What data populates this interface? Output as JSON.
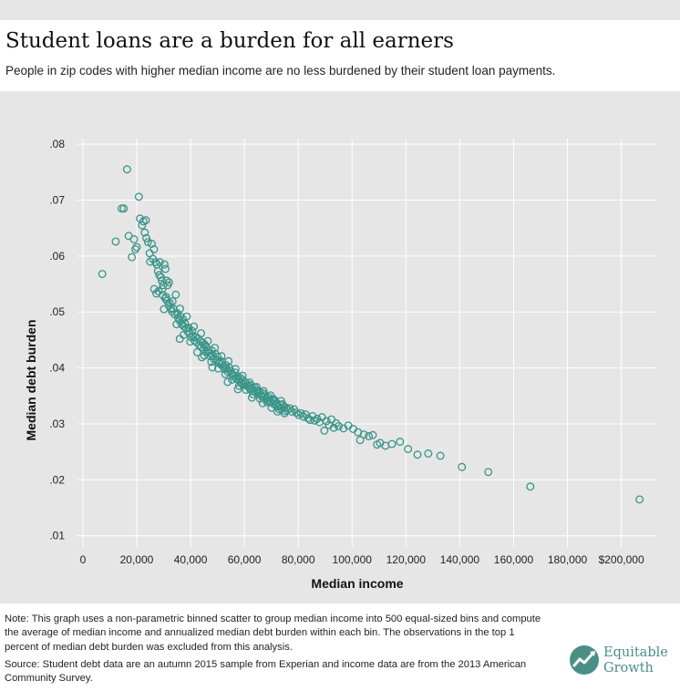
{
  "header": {
    "title": "Student loans are a burden for all earners",
    "subtitle": "People in zip codes with higher median income are no less burdened by their student loan payments."
  },
  "footer": {
    "note": "Note: This graph uses a non-parametric binned scatter to group median income into 500 equal-sized bins and compute the average of median income and annualized median debt burden within each bin. The observations in the top 1 percent of median debt burden was excluded from this analysis.",
    "source": "Source: Student debt data are an autumn 2015 sample from Experian and income data are from the 2013 American Community Survey.",
    "logo_line1": "Equitable",
    "logo_line2": "Growth"
  },
  "colors": {
    "marker": "#3a9488",
    "grid": "#ffffff",
    "background": "#e6e6e6",
    "logo": "#4a8f86"
  },
  "icons": {
    "logo": "equitable-growth-logo-icon"
  },
  "chart_data": {
    "type": "scatter",
    "xlabel": "Median income",
    "ylabel": "Median debt burden",
    "xlim": [
      -2000,
      213000
    ],
    "ylim": [
      0.008,
      0.081
    ],
    "x_ticks": [
      0,
      20000,
      40000,
      60000,
      80000,
      100000,
      120000,
      140000,
      160000,
      180000,
      200000
    ],
    "x_tick_labels": [
      "0",
      "20,000",
      "40,000",
      "60,000",
      "80,000",
      "100,000",
      "120,000",
      "140,000",
      "160,000",
      "180,000",
      "$200,000"
    ],
    "y_ticks": [
      0.01,
      0.02,
      0.03,
      0.04,
      0.05,
      0.06,
      0.07,
      0.08
    ],
    "y_tick_labels": [
      ".01",
      ".02",
      ".03",
      ".04",
      ".05",
      ".06",
      ".07",
      ".08"
    ],
    "grid": true,
    "marker": "hollow-circle",
    "points": [
      [
        7200,
        0.0568
      ],
      [
        12200,
        0.0626
      ],
      [
        14400,
        0.0685
      ],
      [
        15200,
        0.0685
      ],
      [
        16400,
        0.0755
      ],
      [
        17000,
        0.0636
      ],
      [
        18200,
        0.0598
      ],
      [
        19000,
        0.063
      ],
      [
        19500,
        0.0612
      ],
      [
        20000,
        0.0616
      ],
      [
        20800,
        0.0706
      ],
      [
        21200,
        0.0667
      ],
      [
        22000,
        0.0655
      ],
      [
        22500,
        0.0662
      ],
      [
        23400,
        0.0664
      ],
      [
        23000,
        0.0642
      ],
      [
        23600,
        0.0632
      ],
      [
        24200,
        0.0625
      ],
      [
        24800,
        0.0605
      ],
      [
        25600,
        0.0622
      ],
      [
        25000,
        0.059
      ],
      [
        26000,
        0.0595
      ],
      [
        26400,
        0.0612
      ],
      [
        27000,
        0.0589
      ],
      [
        27500,
        0.0585
      ],
      [
        27900,
        0.0573
      ],
      [
        28400,
        0.0566
      ],
      [
        28600,
        0.0589
      ],
      [
        29000,
        0.0562
      ],
      [
        29300,
        0.0556
      ],
      [
        29800,
        0.0548
      ],
      [
        30300,
        0.0585
      ],
      [
        30700,
        0.0577
      ],
      [
        31100,
        0.0556
      ],
      [
        31500,
        0.0548
      ],
      [
        32000,
        0.0553
      ],
      [
        26500,
        0.0541
      ],
      [
        27300,
        0.0533
      ],
      [
        28100,
        0.0537
      ],
      [
        29700,
        0.053
      ],
      [
        30100,
        0.0505
      ],
      [
        30900,
        0.0527
      ],
      [
        31300,
        0.052
      ],
      [
        32300,
        0.0516
      ],
      [
        32700,
        0.0506
      ],
      [
        33100,
        0.0501
      ],
      [
        33600,
        0.0506
      ],
      [
        34100,
        0.0496
      ],
      [
        34500,
        0.0531
      ],
      [
        35000,
        0.0498
      ],
      [
        35400,
        0.049
      ],
      [
        35900,
        0.0485
      ],
      [
        36300,
        0.0492
      ],
      [
        36700,
        0.0478
      ],
      [
        37200,
        0.0487
      ],
      [
        37600,
        0.0474
      ],
      [
        38000,
        0.0479
      ],
      [
        38400,
        0.0471
      ],
      [
        38900,
        0.0465
      ],
      [
        39300,
        0.0472
      ],
      [
        39700,
        0.0462
      ],
      [
        40200,
        0.0455
      ],
      [
        40600,
        0.0466
      ],
      [
        41000,
        0.0457
      ],
      [
        41400,
        0.0449
      ],
      [
        41900,
        0.0455
      ],
      [
        42300,
        0.0446
      ],
      [
        42700,
        0.0453
      ],
      [
        43200,
        0.0441
      ],
      [
        43600,
        0.0448
      ],
      [
        44000,
        0.0437
      ],
      [
        44500,
        0.0445
      ],
      [
        44900,
        0.0434
      ],
      [
        45300,
        0.0442
      ],
      [
        45700,
        0.0438
      ],
      [
        46200,
        0.0429
      ],
      [
        46600,
        0.0433
      ],
      [
        47000,
        0.0426
      ],
      [
        47400,
        0.0421
      ],
      [
        47900,
        0.0431
      ],
      [
        48300,
        0.0422
      ],
      [
        48700,
        0.0416
      ],
      [
        49200,
        0.0425
      ],
      [
        49600,
        0.0414
      ],
      [
        50000,
        0.042
      ],
      [
        50500,
        0.0409
      ],
      [
        50900,
        0.0413
      ],
      [
        51300,
        0.0406
      ],
      [
        51800,
        0.0411
      ],
      [
        52200,
        0.0403
      ],
      [
        52600,
        0.0398
      ],
      [
        53100,
        0.0405
      ],
      [
        53500,
        0.0398
      ],
      [
        53900,
        0.0393
      ],
      [
        54300,
        0.0401
      ],
      [
        54800,
        0.0395
      ],
      [
        55200,
        0.0391
      ],
      [
        55600,
        0.0388
      ],
      [
        56100,
        0.0385
      ],
      [
        56500,
        0.0392
      ],
      [
        56900,
        0.0381
      ],
      [
        57400,
        0.0385
      ],
      [
        57800,
        0.0379
      ],
      [
        58200,
        0.0376
      ],
      [
        58600,
        0.0382
      ],
      [
        59100,
        0.0373
      ],
      [
        59500,
        0.0378
      ],
      [
        59900,
        0.037
      ],
      [
        60400,
        0.0374
      ],
      [
        60800,
        0.0368
      ],
      [
        61200,
        0.0371
      ],
      [
        61700,
        0.0366
      ],
      [
        62100,
        0.0362
      ],
      [
        62500,
        0.0369
      ],
      [
        63000,
        0.0363
      ],
      [
        63400,
        0.0358
      ],
      [
        63800,
        0.0365
      ],
      [
        64300,
        0.0357
      ],
      [
        64700,
        0.036
      ],
      [
        65100,
        0.0354
      ],
      [
        65600,
        0.0358
      ],
      [
        66000,
        0.0352
      ],
      [
        66400,
        0.0349
      ],
      [
        66900,
        0.0355
      ],
      [
        67300,
        0.0348
      ],
      [
        67700,
        0.0351
      ],
      [
        68200,
        0.0345
      ],
      [
        68600,
        0.0342
      ],
      [
        69000,
        0.0348
      ],
      [
        69500,
        0.0341
      ],
      [
        69900,
        0.0338
      ],
      [
        70300,
        0.0344
      ],
      [
        70800,
        0.0336
      ],
      [
        71200,
        0.034
      ],
      [
        71600,
        0.0333
      ],
      [
        72100,
        0.0337
      ],
      [
        72500,
        0.0331
      ],
      [
        72900,
        0.0326
      ],
      [
        73400,
        0.0334
      ],
      [
        73800,
        0.0327
      ],
      [
        74200,
        0.0335
      ],
      [
        74700,
        0.033
      ],
      [
        75100,
        0.0323
      ],
      [
        75500,
        0.0329
      ],
      [
        76000,
        0.0325
      ],
      [
        76800,
        0.0328
      ],
      [
        77600,
        0.0322
      ],
      [
        78500,
        0.0326
      ],
      [
        79300,
        0.032
      ],
      [
        80200,
        0.0316
      ],
      [
        81000,
        0.0319
      ],
      [
        81900,
        0.0313
      ],
      [
        82700,
        0.0317
      ],
      [
        83600,
        0.031
      ],
      [
        84400,
        0.0307
      ],
      [
        85300,
        0.0314
      ],
      [
        86100,
        0.0306
      ],
      [
        87000,
        0.0309
      ],
      [
        87900,
        0.0303
      ],
      [
        88800,
        0.0312
      ],
      [
        89700,
        0.0288
      ],
      [
        90500,
        0.0305
      ],
      [
        91400,
        0.0298
      ],
      [
        92300,
        0.0308
      ],
      [
        93200,
        0.0293
      ],
      [
        94100,
        0.0301
      ],
      [
        95000,
        0.0296
      ],
      [
        96800,
        0.0292
      ],
      [
        98600,
        0.0297
      ],
      [
        100400,
        0.0291
      ],
      [
        102200,
        0.0285
      ],
      [
        103000,
        0.0271
      ],
      [
        104400,
        0.0281
      ],
      [
        106200,
        0.0278
      ],
      [
        107700,
        0.028
      ],
      [
        109300,
        0.0263
      ],
      [
        110400,
        0.0266
      ],
      [
        112400,
        0.0261
      ],
      [
        114800,
        0.0264
      ],
      [
        117800,
        0.0268
      ],
      [
        120800,
        0.0255
      ],
      [
        124300,
        0.0245
      ],
      [
        128300,
        0.0247
      ],
      [
        132800,
        0.0243
      ],
      [
        140800,
        0.0223
      ],
      [
        150600,
        0.0214
      ],
      [
        166200,
        0.0188
      ],
      [
        206800,
        0.0165
      ],
      [
        29500,
        0.0541
      ],
      [
        30600,
        0.0524
      ],
      [
        31900,
        0.0512
      ],
      [
        33300,
        0.0519
      ],
      [
        34800,
        0.0478
      ],
      [
        36100,
        0.0506
      ],
      [
        37400,
        0.0459
      ],
      [
        38600,
        0.0492
      ],
      [
        39900,
        0.0447
      ],
      [
        41200,
        0.0474
      ],
      [
        42500,
        0.0428
      ],
      [
        43900,
        0.0462
      ],
      [
        45100,
        0.0422
      ],
      [
        46400,
        0.0448
      ],
      [
        47700,
        0.0411
      ],
      [
        49000,
        0.0436
      ],
      [
        50300,
        0.0399
      ],
      [
        51500,
        0.0421
      ],
      [
        52900,
        0.0389
      ],
      [
        54100,
        0.0412
      ],
      [
        55400,
        0.0379
      ],
      [
        56700,
        0.0398
      ],
      [
        58000,
        0.0368
      ],
      [
        59300,
        0.0386
      ],
      [
        60600,
        0.0361
      ],
      [
        61900,
        0.0374
      ],
      [
        63200,
        0.0353
      ],
      [
        64500,
        0.0366
      ],
      [
        65800,
        0.0345
      ],
      [
        67100,
        0.0359
      ],
      [
        68400,
        0.0339
      ],
      [
        69700,
        0.0351
      ],
      [
        71000,
        0.0344
      ],
      [
        72300,
        0.0322
      ],
      [
        73600,
        0.0341
      ],
      [
        74900,
        0.0319
      ],
      [
        36000,
        0.0452
      ],
      [
        44200,
        0.0419
      ],
      [
        48100,
        0.0401
      ],
      [
        53800,
        0.0375
      ],
      [
        57600,
        0.0362
      ],
      [
        62800,
        0.0347
      ],
      [
        66800,
        0.0337
      ],
      [
        70100,
        0.0329
      ]
    ]
  }
}
